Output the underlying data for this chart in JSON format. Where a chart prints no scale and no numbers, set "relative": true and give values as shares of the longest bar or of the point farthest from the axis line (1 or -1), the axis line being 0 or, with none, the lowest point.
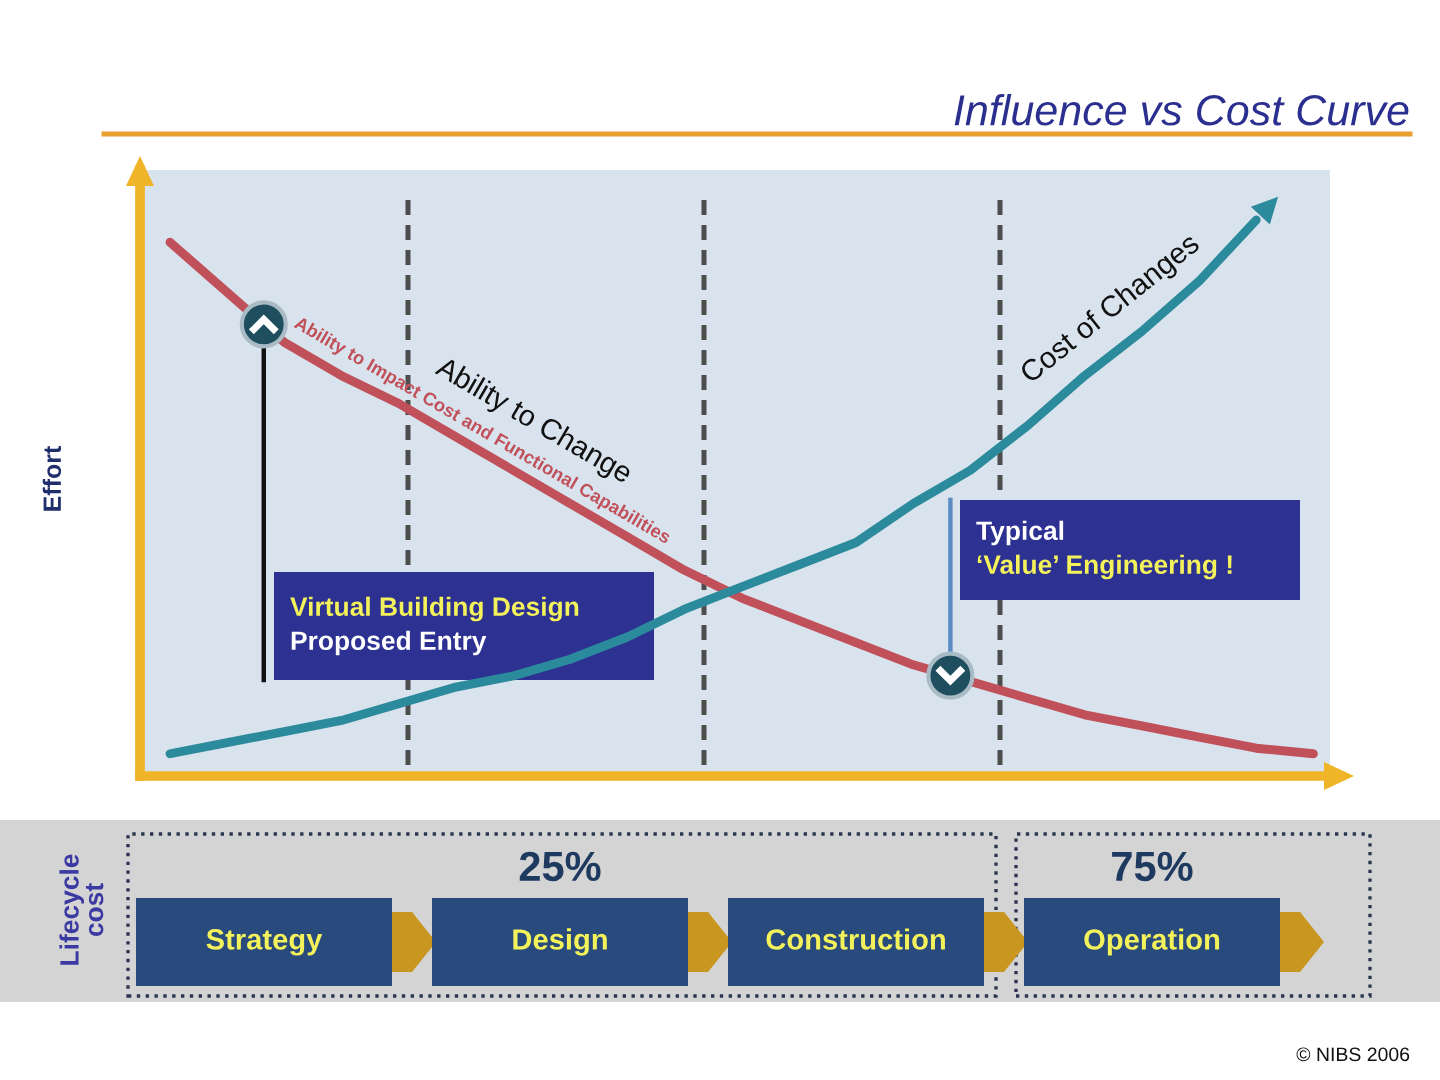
{
  "chart_data": [
    {
      "type": "line",
      "title": "Influence vs Cost Curve",
      "ylabel": "Effort",
      "relative": true,
      "categories": [
        null,
        null,
        null,
        null,
        null,
        null,
        null,
        null,
        null,
        null,
        null,
        null,
        null,
        null,
        null,
        null,
        null,
        null,
        null,
        null,
        null
      ],
      "series": [
        {
          "name": "Ability to Impact Cost and Functional Capabilities",
          "color": "#c0505a",
          "values": [
            0.96,
            0.87,
            0.78,
            0.72,
            0.67,
            0.61,
            0.55,
            0.49,
            0.43,
            0.37,
            0.32,
            0.28,
            0.24,
            0.2,
            0.17,
            0.14,
            0.11,
            0.09,
            0.07,
            0.05,
            0.04
          ]
        },
        {
          "name": "Cost of Changes",
          "color": "#2b8a9b",
          "values": [
            0.04,
            0.06,
            0.08,
            0.1,
            0.13,
            0.16,
            0.18,
            0.21,
            0.25,
            0.3,
            0.34,
            0.38,
            0.42,
            0.49,
            0.55,
            0.63,
            0.72,
            0.8,
            0.89,
            1,
            null
          ]
        }
      ],
      "annotations": [
        "Virtual Building Design\nProposed Entry",
        "Typical\n‘Value’ Engineering !",
        "Ability to Change",
        "© NIBS 2006"
      ]
    },
    {
      "type": "other",
      "ylabel": "Lifecycle\ncost",
      "categories": [
        "Strategy",
        "Design",
        "Construction",
        "Operation"
      ],
      "value_labels": [
        null,
        "25%",
        null,
        "75%"
      ]
    }
  ]
}
